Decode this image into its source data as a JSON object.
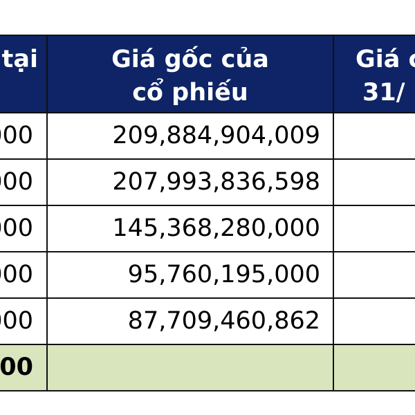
{
  "header": {
    "col0_line1": "tại",
    "col1_line1": "Giá gốc của",
    "col1_line2": "cổ phiếu",
    "col2_line1": "Giá c",
    "col2_line2": "31/"
  },
  "rows": [
    {
      "col0": "000",
      "col1": "209,884,904,009",
      "col2": ""
    },
    {
      "col0": "000",
      "col1": "207,993,836,598",
      "col2": ""
    },
    {
      "col0": "000",
      "col1": "145,368,280,000",
      "col2": ""
    },
    {
      "col0": "000",
      "col1": "95,760,195,000",
      "col2": ""
    },
    {
      "col0": "000",
      "col1": "87,709,460,862",
      "col2": ""
    }
  ],
  "total_row": {
    "col0": "00",
    "col1": "",
    "col2": ""
  },
  "colors": {
    "header_bg": "#0e2466",
    "header_text": "#ffffff",
    "total_bg": "#d9e5bd",
    "grid": "#111111"
  }
}
